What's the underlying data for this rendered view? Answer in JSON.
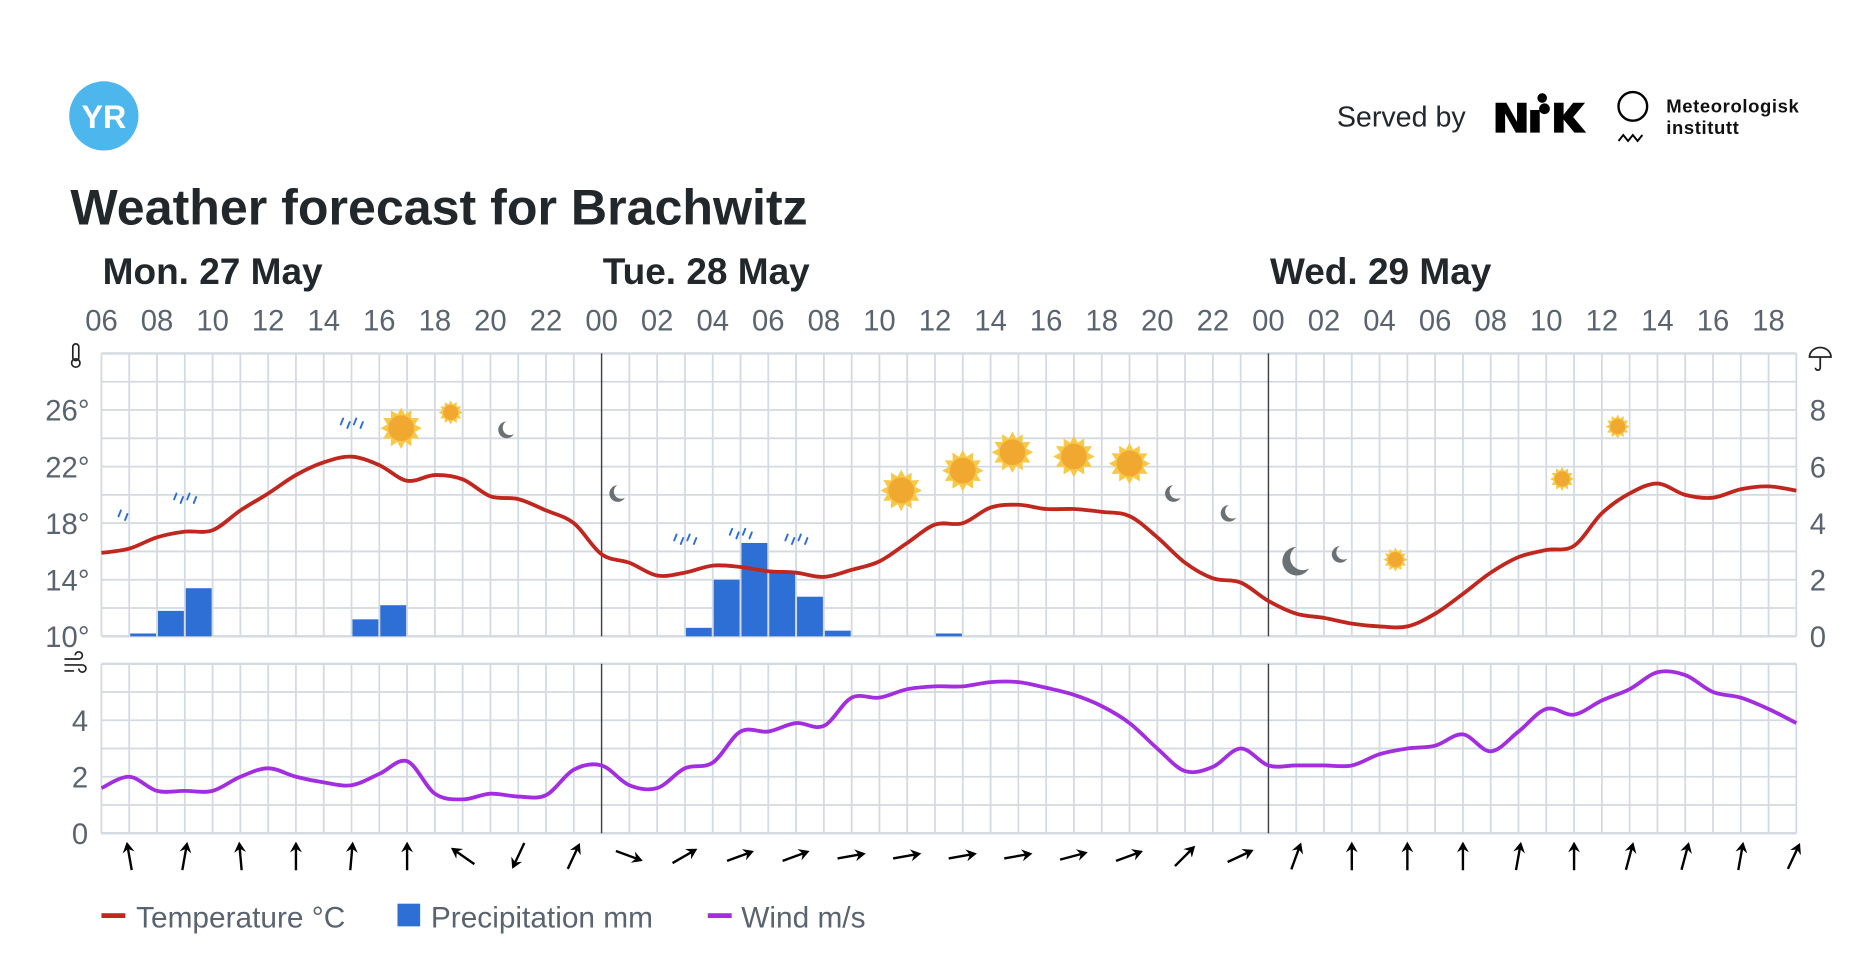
{
  "header": {
    "logo_text": "YR",
    "served_by": "Served by",
    "nrk_logo_text": "NRK",
    "met_line1": "Meteorologisk",
    "met_line2": "institutt",
    "title": "Weather forecast for Brachwitz"
  },
  "colors": {
    "logo": "#4db6ec",
    "temperature": "#c0271e",
    "precipitation": "#2e6fd6",
    "wind": "#a22ee0",
    "grid": "#d3dae1",
    "day_separator": "#3d4247"
  },
  "legend": {
    "temperature": "Temperature °C",
    "precipitation": "Precipitation mm",
    "wind": "Wind m/s"
  },
  "chart_data": {
    "type": "line",
    "days": [
      {
        "label": "Mon. 27 May",
        "starts_at": "27 May 06:00"
      },
      {
        "label": "Tue. 28 May",
        "starts_at": "28 May 00:00"
      },
      {
        "label": "Wed. 29 May",
        "starts_at": "29 May 00:00"
      }
    ],
    "x_tick_labels": [
      "06",
      "08",
      "10",
      "12",
      "14",
      "16",
      "18",
      "20",
      "22",
      "00",
      "02",
      "04",
      "06",
      "08",
      "10",
      "12",
      "14",
      "16",
      "18",
      "20",
      "22",
      "00",
      "02",
      "04",
      "06",
      "08",
      "10",
      "12",
      "14",
      "16",
      "18"
    ],
    "times": [
      "27 May 06:00",
      "27 May 07:00",
      "27 May 08:00",
      "27 May 09:00",
      "27 May 10:00",
      "27 May 11:00",
      "27 May 12:00",
      "27 May 13:00",
      "27 May 14:00",
      "27 May 15:00",
      "27 May 16:00",
      "27 May 17:00",
      "27 May 18:00",
      "27 May 19:00",
      "27 May 20:00",
      "27 May 21:00",
      "27 May 22:00",
      "27 May 23:00",
      "28 May 00:00",
      "28 May 01:00",
      "28 May 02:00",
      "28 May 03:00",
      "28 May 04:00",
      "28 May 05:00",
      "28 May 06:00",
      "28 May 07:00",
      "28 May 08:00",
      "28 May 09:00",
      "28 May 10:00",
      "28 May 11:00",
      "28 May 12:00",
      "28 May 13:00",
      "28 May 14:00",
      "28 May 15:00",
      "28 May 16:00",
      "28 May 17:00",
      "28 May 18:00",
      "28 May 19:00",
      "28 May 20:00",
      "28 May 21:00",
      "28 May 22:00",
      "28 May 23:00",
      "29 May 00:00",
      "29 May 01:00",
      "29 May 02:00",
      "29 May 03:00",
      "29 May 04:00",
      "29 May 05:00",
      "29 May 06:00",
      "29 May 07:00",
      "29 May 08:00",
      "29 May 09:00",
      "29 May 10:00",
      "29 May 11:00",
      "29 May 12:00",
      "29 May 13:00",
      "29 May 14:00",
      "29 May 15:00",
      "29 May 16:00",
      "29 May 17:00",
      "29 May 18:00",
      "29 May 19:00"
    ],
    "temperature": {
      "name": "Temperature °C",
      "ylim": [
        10,
        30
      ],
      "tick_labels": [
        "10°",
        "14°",
        "18°",
        "22°",
        "26°"
      ],
      "tick_values": [
        10,
        14,
        18,
        22,
        26
      ],
      "values": [
        15.9,
        16.2,
        17.0,
        17.4,
        17.5,
        18.9,
        20.1,
        21.4,
        22.3,
        22.7,
        22.1,
        21.0,
        21.4,
        21.1,
        19.9,
        19.7,
        18.9,
        18.0,
        15.8,
        15.2,
        14.3,
        14.5,
        15.0,
        14.9,
        14.6,
        14.5,
        14.2,
        14.7,
        15.3,
        16.6,
        17.9,
        18.0,
        19.1,
        19.3,
        19.0,
        19.0,
        18.8,
        18.5,
        17.0,
        15.2,
        14.1,
        13.8,
        12.5,
        11.6,
        11.3,
        10.9,
        10.7,
        10.7,
        11.6,
        13.0,
        14.5,
        15.6,
        16.1,
        16.4,
        18.7,
        20.1,
        20.8,
        20.0,
        19.8,
        20.4,
        20.6,
        20.3
      ]
    },
    "precipitation": {
      "name": "Precipitation mm",
      "ylim": [
        0,
        10
      ],
      "tick_labels": [
        "0",
        "2",
        "4",
        "6",
        "8"
      ],
      "tick_values": [
        0,
        2,
        4,
        6,
        8
      ],
      "bars": [
        {
          "time": "27 May 07:00",
          "value": 0.1
        },
        {
          "time": "27 May 08:00",
          "value": 0.9
        },
        {
          "time": "27 May 09:00",
          "value": 1.7
        },
        {
          "time": "27 May 15:00",
          "value": 0.6
        },
        {
          "time": "27 May 16:00",
          "value": 1.1
        },
        {
          "time": "28 May 03:00",
          "value": 0.3
        },
        {
          "time": "28 May 04:00",
          "value": 2.0
        },
        {
          "time": "28 May 05:00",
          "value": 3.3
        },
        {
          "time": "28 May 06:00",
          "value": 2.3
        },
        {
          "time": "28 May 07:00",
          "value": 1.4
        },
        {
          "time": "28 May 08:00",
          "value": 0.2
        },
        {
          "time": "28 May 12:00",
          "value": 0.1
        }
      ]
    },
    "wind": {
      "name": "Wind m/s",
      "ylim": [
        0,
        6
      ],
      "tick_labels": [
        "0",
        "2",
        "4"
      ],
      "tick_values": [
        0,
        2,
        4
      ],
      "values": [
        1.6,
        2.0,
        1.5,
        1.5,
        1.5,
        2.0,
        2.3,
        2.0,
        1.8,
        1.7,
        2.1,
        2.55,
        1.4,
        1.2,
        1.4,
        1.3,
        1.35,
        2.25,
        2.4,
        1.7,
        1.6,
        2.3,
        2.5,
        3.6,
        3.6,
        3.9,
        3.8,
        4.8,
        4.8,
        5.1,
        5.2,
        5.2,
        5.35,
        5.35,
        5.15,
        4.9,
        4.5,
        3.9,
        3.0,
        2.2,
        2.35,
        3.0,
        2.4,
        2.4,
        2.4,
        2.4,
        2.8,
        3.0,
        3.1,
        3.5,
        2.9,
        3.6,
        4.4,
        4.2,
        4.7,
        5.1,
        5.7,
        5.6,
        5.0,
        4.8,
        4.4,
        3.9
      ]
    },
    "wind_arrows": [
      {
        "time": "27 May 07:00",
        "arrow_deg": -10
      },
      {
        "time": "27 May 09:00",
        "arrow_deg": 10
      },
      {
        "time": "27 May 11:00",
        "arrow_deg": -5
      },
      {
        "time": "27 May 13:00",
        "arrow_deg": 0
      },
      {
        "time": "27 May 15:00",
        "arrow_deg": 5
      },
      {
        "time": "27 May 17:00",
        "arrow_deg": 0
      },
      {
        "time": "27 May 19:00",
        "arrow_deg": -55
      },
      {
        "time": "27 May 21:00",
        "arrow_deg": 205
      },
      {
        "time": "27 May 23:00",
        "arrow_deg": 25
      },
      {
        "time": "28 May 01:00",
        "arrow_deg": 110
      },
      {
        "time": "28 May 03:00",
        "arrow_deg": 60
      },
      {
        "time": "28 May 05:00",
        "arrow_deg": 70
      },
      {
        "time": "28 May 07:00",
        "arrow_deg": 70
      },
      {
        "time": "28 May 09:00",
        "arrow_deg": 80
      },
      {
        "time": "28 May 11:00",
        "arrow_deg": 80
      },
      {
        "time": "28 May 13:00",
        "arrow_deg": 80
      },
      {
        "time": "28 May 15:00",
        "arrow_deg": 80
      },
      {
        "time": "28 May 17:00",
        "arrow_deg": 75
      },
      {
        "time": "28 May 19:00",
        "arrow_deg": 70
      },
      {
        "time": "28 May 21:00",
        "arrow_deg": 45
      },
      {
        "time": "28 May 23:00",
        "arrow_deg": 65
      },
      {
        "time": "29 May 01:00",
        "arrow_deg": 20
      },
      {
        "time": "29 May 03:00",
        "arrow_deg": 0
      },
      {
        "time": "29 May 05:00",
        "arrow_deg": 0
      },
      {
        "time": "29 May 07:00",
        "arrow_deg": 0
      },
      {
        "time": "29 May 09:00",
        "arrow_deg": 10
      },
      {
        "time": "29 May 11:00",
        "arrow_deg": 0
      },
      {
        "time": "29 May 13:00",
        "arrow_deg": 15
      },
      {
        "time": "29 May 15:00",
        "arrow_deg": 15
      },
      {
        "time": "29 May 17:00",
        "arrow_deg": 10
      },
      {
        "time": "29 May 19:00",
        "arrow_deg": 25
      }
    ],
    "weather_symbols": [
      {
        "time": "27 May 07:00",
        "symbol": "lightrain"
      },
      {
        "time": "27 May 09:00",
        "symbol": "rain"
      },
      {
        "time": "27 May 11:00",
        "symbol": "cloudy"
      },
      {
        "time": "27 May 13:00",
        "symbol": "cloudy"
      },
      {
        "time": "27 May 15:00",
        "symbol": "rain"
      },
      {
        "time": "27 May 17:00",
        "symbol": "fair_day"
      },
      {
        "time": "27 May 19:00",
        "symbol": "partlycloudy_day"
      },
      {
        "time": "27 May 21:00",
        "symbol": "partlycloudy_night"
      },
      {
        "time": "27 May 23:00",
        "symbol": "cloudy"
      },
      {
        "time": "28 May 01:00",
        "symbol": "partlycloudy_night"
      },
      {
        "time": "28 May 03:00",
        "symbol": "rain"
      },
      {
        "time": "28 May 05:00",
        "symbol": "rain"
      },
      {
        "time": "28 May 07:00",
        "symbol": "rain"
      },
      {
        "time": "28 May 09:00",
        "symbol": "cloudy"
      },
      {
        "time": "28 May 11:00",
        "symbol": "fair_day"
      },
      {
        "time": "28 May 13:00",
        "symbol": "clearsky_day"
      },
      {
        "time": "28 May 15:00",
        "symbol": "fair_day"
      },
      {
        "time": "28 May 17:00",
        "symbol": "clearsky_day"
      },
      {
        "time": "28 May 19:00",
        "symbol": "clearsky_day"
      },
      {
        "time": "28 May 21:00",
        "symbol": "partlycloudy_night"
      },
      {
        "time": "28 May 23:00",
        "symbol": "partlycloudy_night"
      },
      {
        "time": "29 May 01:00",
        "symbol": "clearsky_night"
      },
      {
        "time": "29 May 03:00",
        "symbol": "partlycloudy_night"
      },
      {
        "time": "29 May 05:00",
        "symbol": "partlycloudy_day"
      },
      {
        "time": "29 May 07:00",
        "symbol": "cloudy"
      },
      {
        "time": "29 May 09:00",
        "symbol": "cloudy"
      },
      {
        "time": "29 May 11:00",
        "symbol": "partlycloudy_day"
      },
      {
        "time": "29 May 13:00",
        "symbol": "partlycloudy_day"
      },
      {
        "time": "29 May 15:00",
        "symbol": "cloudy"
      },
      {
        "time": "29 May 17:00",
        "symbol": "cloudy"
      }
    ],
    "grid": true,
    "legend_position": "bottom-left"
  }
}
